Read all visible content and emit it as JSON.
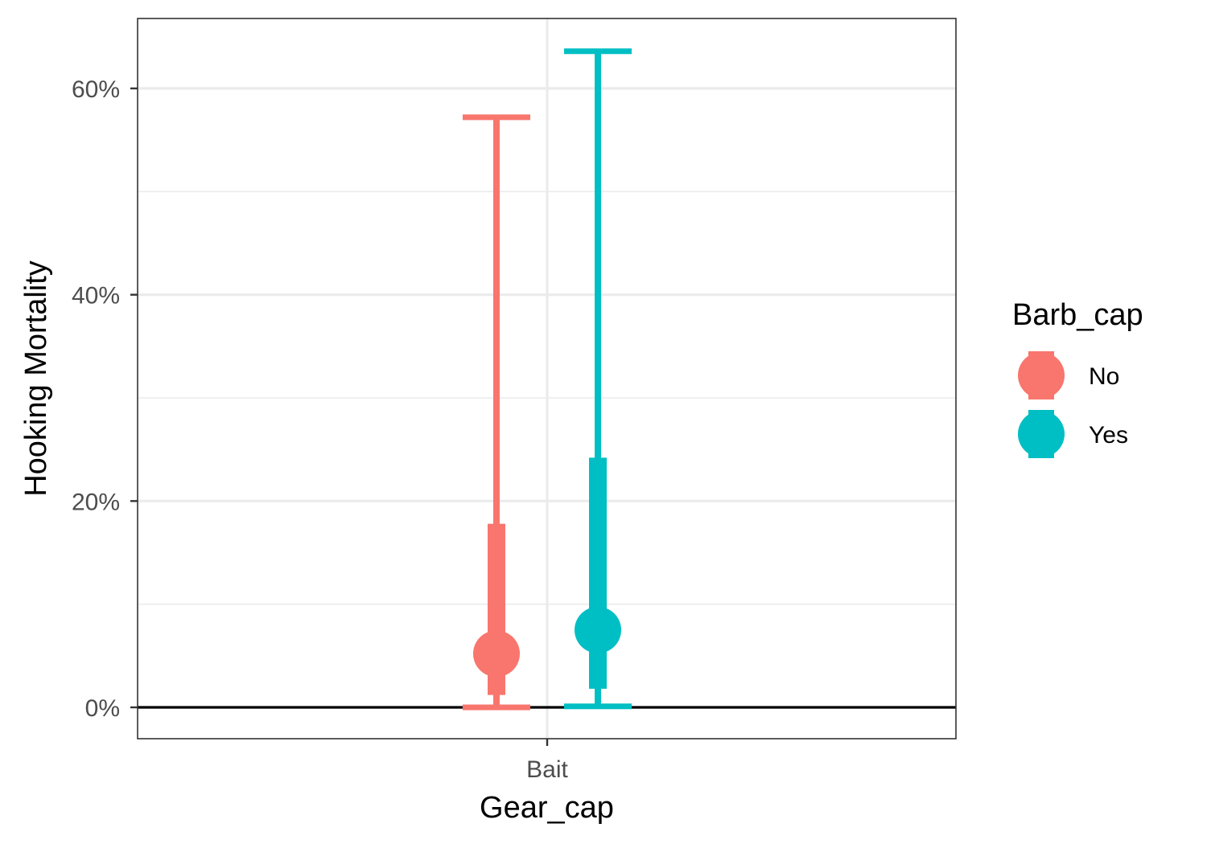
{
  "chart_data": {
    "type": "pointrange",
    "xlabel": "Gear_cap",
    "ylabel": "Hooking Mortality",
    "categories": [
      "Bait"
    ],
    "y_ticks": [
      "0%",
      "20%",
      "40%",
      "60%"
    ],
    "y_tick_values": [
      0,
      20,
      40,
      60
    ],
    "ylim": [
      -3,
      67
    ],
    "grid": true,
    "reference_line_y": 0,
    "legend": {
      "title": "Barb_cap",
      "position": "right",
      "items": [
        {
          "label": "No",
          "color": "#F8766D"
        },
        {
          "label": "Yes",
          "color": "#00BFC4"
        }
      ]
    },
    "series": [
      {
        "name": "No",
        "color": "#F8766D",
        "category": "Bait",
        "estimate": 5.2,
        "inner_interval": [
          1.2,
          17.8
        ],
        "outer_interval": [
          0.0,
          57.2
        ]
      },
      {
        "name": "Yes",
        "color": "#00BFC4",
        "category": "Bait",
        "estimate": 7.5,
        "inner_interval": [
          1.8,
          24.2
        ],
        "outer_interval": [
          0.1,
          63.6
        ]
      }
    ]
  }
}
